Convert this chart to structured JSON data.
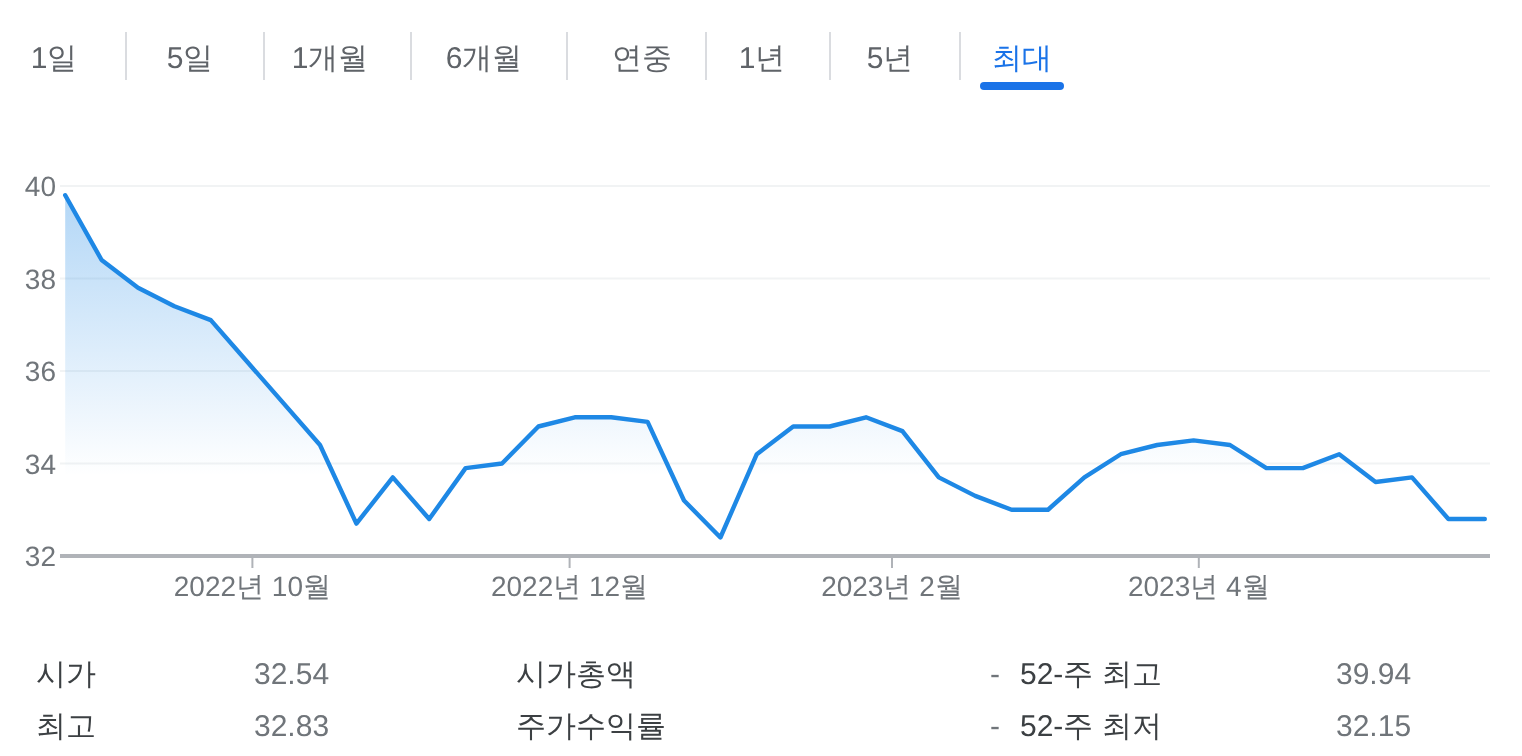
{
  "chart_data": [
    {
      "type": "other",
      "annotations": [
        "1일",
        "5일",
        "1개월",
        "6개월",
        "연중",
        "1년",
        "5년",
        "최대"
      ]
    },
    {
      "type": "area",
      "x": [
        "2022-08-26",
        "2022-09-02",
        "2022-09-09",
        "2022-09-16",
        "2022-09-23",
        "2022-09-30",
        "2022-10-07",
        "2022-10-14",
        "2022-10-21",
        "2022-10-28",
        "2022-11-04",
        "2022-11-11",
        "2022-11-18",
        "2022-11-25",
        "2022-12-02",
        "2022-12-09",
        "2022-12-16",
        "2022-12-23",
        "2022-12-30",
        "2023-01-06",
        "2023-01-13",
        "2023-01-20",
        "2023-01-27",
        "2023-02-03",
        "2023-02-10",
        "2023-02-17",
        "2023-02-24",
        "2023-03-03",
        "2023-03-10",
        "2023-03-17",
        "2023-03-24",
        "2023-03-31",
        "2023-04-07",
        "2023-04-14",
        "2023-04-21",
        "2023-04-28",
        "2023-05-05",
        "2023-05-12",
        "2023-05-19",
        "2023-05-26"
      ],
      "series": [
        {
          "color": "#1e88e5",
          "values": [
            39.8,
            38.4,
            37.8,
            37.4,
            37.1,
            36.2,
            35.3,
            34.4,
            32.7,
            33.7,
            32.8,
            33.9,
            34.0,
            34.8,
            35.0,
            35.0,
            34.9,
            33.2,
            32.4,
            34.2,
            34.8,
            34.8,
            35.0,
            34.7,
            33.7,
            33.3,
            33.0,
            33.0,
            33.7,
            34.2,
            34.4,
            34.5,
            34.4,
            33.9,
            33.9,
            34.2,
            33.6,
            33.7,
            32.8,
            32.8
          ]
        }
      ],
      "xlim": [
        "2022-08-25",
        "2023-05-27"
      ],
      "xticks": [
        {
          "value": "2022-10-01",
          "label": "2022년 10월"
        },
        {
          "value": "2022-12-01",
          "label": "2022년 12월"
        },
        {
          "value": "2023-02-01",
          "label": "2023년 2월"
        },
        {
          "value": "2023-04-01",
          "label": "2023년 4월"
        }
      ],
      "ylim": [
        32,
        40
      ],
      "yticks": [
        32,
        34,
        36,
        38,
        40
      ],
      "grid": "y"
    },
    {
      "type": "other",
      "annotations": [
        "시가",
        "32.54",
        "시가총액",
        "-",
        "52-주 최고",
        "39.94",
        "최고",
        "32.83",
        "주가수익률",
        "-",
        "52-주 최저",
        "32.15"
      ]
    }
  ]
}
